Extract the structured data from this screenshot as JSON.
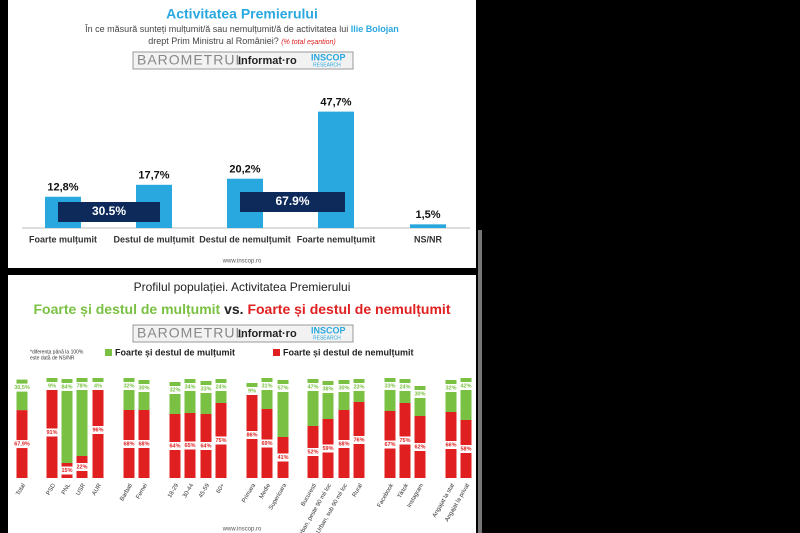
{
  "chart_data": [
    {
      "type": "bar",
      "title": "Activitatea Premierului",
      "subtitle": [
        "În ce măsură sunteți mulțumit/ă sau nemulțumit/ă de activitatea lui ",
        "Ilie Bolojan",
        "drept Prim Ministru al României? ",
        "(% total eșantion)"
      ],
      "logo": [
        "BAROMETRUL",
        "Informat·ro",
        "INSCOP",
        "RESEARCH"
      ],
      "categories": [
        "Foarte mulțumit",
        "Destul de mulțumit",
        "Destul de nemulțumit",
        "Foarte nemulțumit",
        "NS/NR"
      ],
      "values": [
        12.8,
        17.7,
        20.2,
        47.7,
        1.5
      ],
      "value_labels": [
        "12,8%",
        "17,7%",
        "20,2%",
        "47,7%",
        "1,5%"
      ],
      "color": "#29a8e0",
      "ylim": [
        0,
        50
      ],
      "annotations": [
        "30.5%",
        "67.9%"
      ],
      "footer": "www.inscop.ro"
    },
    {
      "type": "stacked_bar",
      "title": "Profilul populației. Activitatea Premierului",
      "heading": [
        "Foarte și destul de mulțumit",
        " vs. ",
        "Foarte și destul de nemulțumit"
      ],
      "logo": [
        "BAROMETRUL",
        "Informat·ro",
        "INSCOP",
        "RESEARCH"
      ],
      "note": [
        "*diferența până la 100%",
        "este dată de NS/NR"
      ],
      "categories": [
        "Total",
        "PSD",
        "PNL",
        "USR",
        "AUR",
        "Barbati",
        "Femei",
        "18-29",
        "30-44",
        "45-59",
        "60+",
        "Primara",
        "Medie",
        "Superioara",
        "Bucuresti",
        "Urban, peste 90 mii loc",
        "Urban, sub 90 mii loc",
        "Rural",
        "Facebook",
        "Tiktok",
        "Instagram",
        "Angajat la stat",
        "Angajat la privat"
      ],
      "series": [
        {
          "name": "Foarte și destul de nemulțumit",
          "color": "#e02020",
          "values": [
            67.9,
            91,
            15,
            22,
            96,
            68,
            68,
            64,
            65,
            64,
            75,
            86,
            69,
            41,
            52,
            59,
            68,
            76,
            67,
            75,
            62,
            66,
            58
          ],
          "value_labels": [
            "67,9%",
            "91%",
            "15%",
            "22%",
            "96%",
            "68%",
            "68%",
            "64%",
            "65%",
            "64%",
            "75%",
            "86%",
            "69%",
            "41%",
            "52%",
            "59%",
            "68%",
            "76%",
            "67%",
            "75%",
            "62%",
            "66%",
            "58%"
          ]
        },
        {
          "name": "Foarte și destul de mulțumit",
          "color": "#7ac143",
          "values": [
            30.5,
            9,
            84,
            78,
            4,
            32,
            30,
            32,
            34,
            33,
            24,
            9,
            31,
            57,
            47,
            38,
            30,
            23,
            33,
            24,
            30,
            32,
            42
          ],
          "value_labels": [
            "30,5%",
            "9%",
            "84%",
            "78%",
            "4%",
            "32%",
            "30%",
            "32%",
            "34%",
            "33%",
            "24%",
            "9%",
            "31%",
            "57%",
            "47%",
            "38%",
            "30%",
            "23%",
            "33%",
            "24%",
            "30%",
            "32%",
            "42%"
          ]
        }
      ],
      "ylim": [
        0,
        100
      ],
      "footer": "www.inscop.ro"
    }
  ]
}
